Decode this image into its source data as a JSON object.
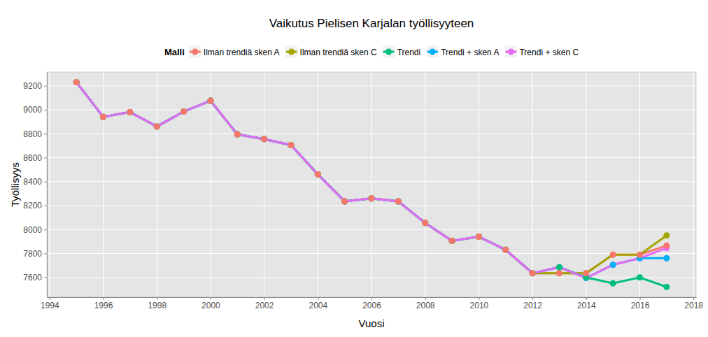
{
  "chart_data": {
    "type": "line",
    "title": "Vaikutus Pielisen Karjalan työllisyyteen",
    "x_label": "Vuosi",
    "y_label": "Työllisyys",
    "legend_title": "Malli",
    "legend": "top",
    "grid": true,
    "marker": "circle",
    "line_style": "solid",
    "x": [
      1995,
      1996,
      1997,
      1998,
      1999,
      2000,
      2001,
      2002,
      2003,
      2004,
      2005,
      2006,
      2007,
      2008,
      2009,
      2010,
      2011,
      2012,
      2013,
      2014,
      2015,
      2016,
      2017
    ],
    "xlim": [
      1993.9,
      2018.1
    ],
    "xticks": [
      1994,
      1996,
      1998,
      2000,
      2002,
      2004,
      2006,
      2008,
      2010,
      2012,
      2014,
      2016,
      2018
    ],
    "ylim": [
      7435,
      9315
    ],
    "yticks": [
      7600,
      7800,
      8000,
      8200,
      8400,
      8600,
      8800,
      9000,
      9200
    ],
    "series": [
      {
        "name": "Ilman trendiä sken A",
        "color": "#F8766D",
        "values": [
          9230,
          8940,
          8980,
          8860,
          8985,
          9075,
          8795,
          8755,
          8705,
          8460,
          8235,
          8260,
          8235,
          8055,
          7905,
          7940,
          7830,
          7635,
          7635,
          7635,
          7790,
          7790,
          7865
        ]
      },
      {
        "name": "Ilman trendiä sken C",
        "color": "#A3A500",
        "values": [
          9230,
          8940,
          8980,
          8860,
          8985,
          9075,
          8795,
          8755,
          8705,
          8460,
          8235,
          8260,
          8235,
          8055,
          7905,
          7940,
          7830,
          7635,
          7635,
          7635,
          7790,
          7790,
          7950
        ]
      },
      {
        "name": "Trendi",
        "color": "#00BF7D",
        "values": [
          9230,
          8940,
          8980,
          8860,
          8985,
          9075,
          8795,
          8755,
          8705,
          8460,
          8235,
          8260,
          8235,
          8055,
          7905,
          7940,
          7830,
          7635,
          7685,
          7600,
          7550,
          7600,
          7520
        ]
      },
      {
        "name": "Trendi + sken A",
        "color": "#00B0F6",
        "values": [
          9230,
          8940,
          8980,
          8860,
          8985,
          9075,
          8795,
          8755,
          8705,
          8460,
          8235,
          8260,
          8235,
          8055,
          7905,
          7940,
          7830,
          7635,
          7685,
          7595,
          7705,
          7760,
          7760
        ]
      },
      {
        "name": "Trendi + sken C",
        "color": "#E76BF3",
        "values": [
          9230,
          8940,
          8980,
          8860,
          8985,
          9075,
          8795,
          8755,
          8705,
          8460,
          8235,
          8260,
          8235,
          8055,
          7905,
          7940,
          7830,
          7635,
          7685,
          7595,
          7705,
          7760,
          7845
        ]
      }
    ]
  }
}
